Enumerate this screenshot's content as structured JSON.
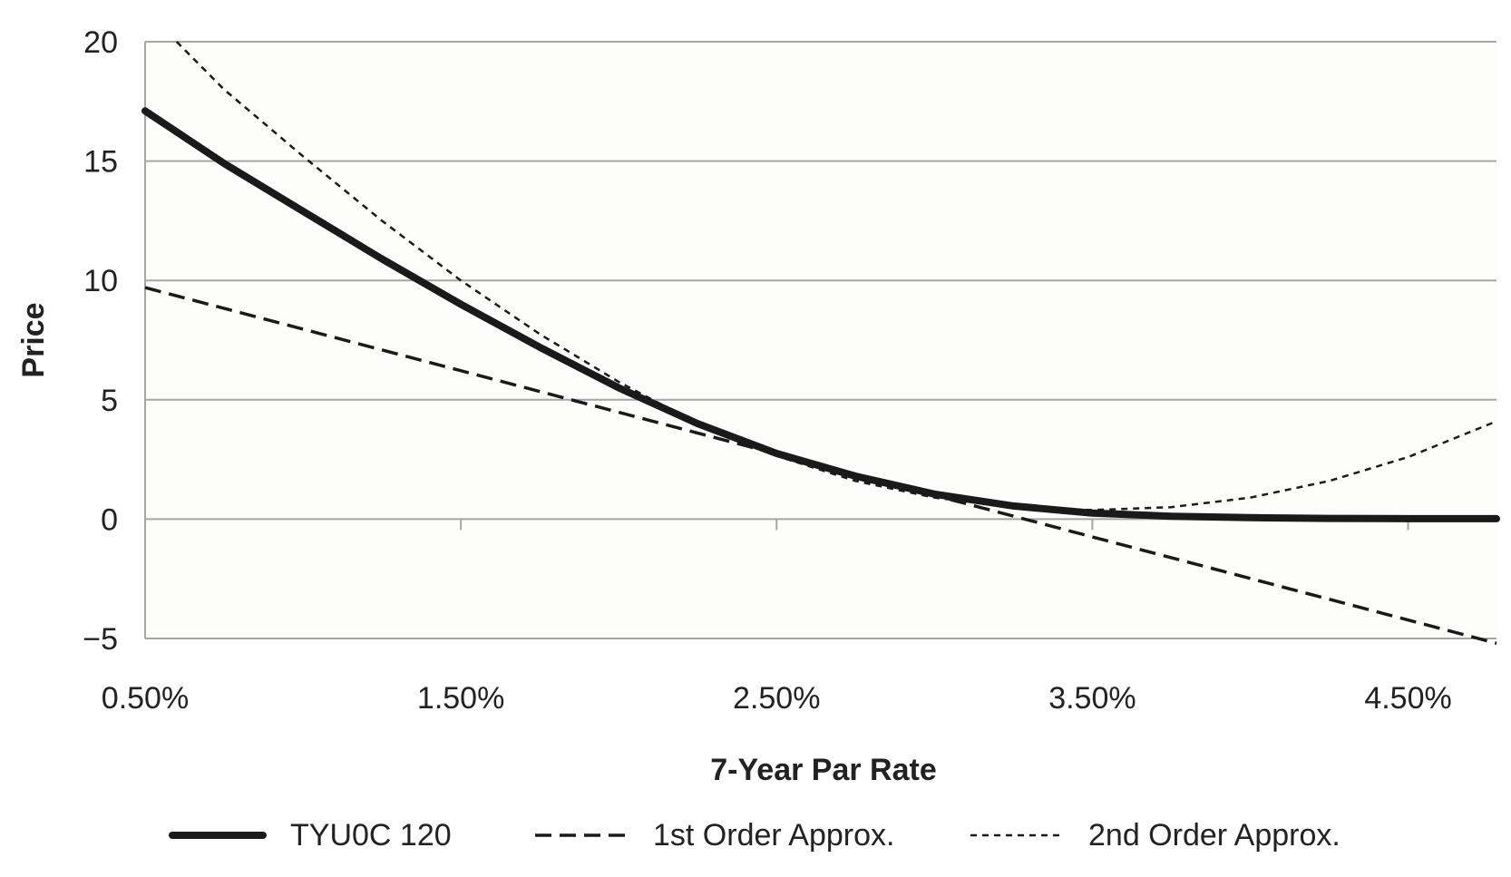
{
  "chart_data": {
    "type": "line",
    "xlabel": "7-Year Par Rate",
    "ylabel": "Price",
    "xlim": [
      0.5,
      4.78
    ],
    "ylim": [
      -5,
      20
    ],
    "x_ticks": [
      0.5,
      1.5,
      2.5,
      3.5,
      4.5
    ],
    "x_tick_labels": [
      "0.50%",
      "1.50%",
      "2.50%",
      "3.50%",
      "4.50%"
    ],
    "y_ticks": [
      -5,
      0,
      5,
      10,
      15,
      20
    ],
    "y_tick_labels": [
      "−5",
      "0",
      "5",
      "10",
      "15",
      "20"
    ],
    "grid": "horizontal",
    "legend_position": "bottom",
    "series": [
      {
        "name": "TYU0C 120",
        "style": "solid-thick",
        "color": "#1a1a1a",
        "x": [
          0.5,
          0.75,
          1.0,
          1.25,
          1.5,
          1.75,
          2.0,
          2.25,
          2.5,
          2.75,
          3.0,
          3.25,
          3.5,
          3.75,
          4.0,
          4.25,
          4.5,
          4.78
        ],
        "y": [
          17.1,
          14.9,
          12.9,
          10.9,
          9.0,
          7.2,
          5.5,
          4.0,
          2.75,
          1.8,
          1.05,
          0.55,
          0.25,
          0.12,
          0.06,
          0.03,
          0.02,
          0.02
        ]
      },
      {
        "name": "1st Order Approx.",
        "style": "dashed",
        "color": "#1a1a1a",
        "x": [
          0.5,
          4.78
        ],
        "y": [
          9.7,
          -5.2
        ]
      },
      {
        "name": "2nd Order Approx.",
        "style": "dotted",
        "color": "#1a1a1a",
        "x": [
          0.6,
          0.75,
          1.0,
          1.25,
          1.5,
          1.75,
          2.0,
          2.25,
          2.5,
          2.75,
          3.0,
          3.25,
          3.5,
          3.75,
          4.0,
          4.25,
          4.5,
          4.78
        ],
        "y": [
          20.0,
          18.0,
          15.2,
          12.5,
          10.0,
          7.75,
          5.75,
          4.0,
          2.65,
          1.6,
          0.9,
          0.5,
          0.38,
          0.5,
          0.9,
          1.6,
          2.6,
          4.1
        ]
      }
    ]
  }
}
